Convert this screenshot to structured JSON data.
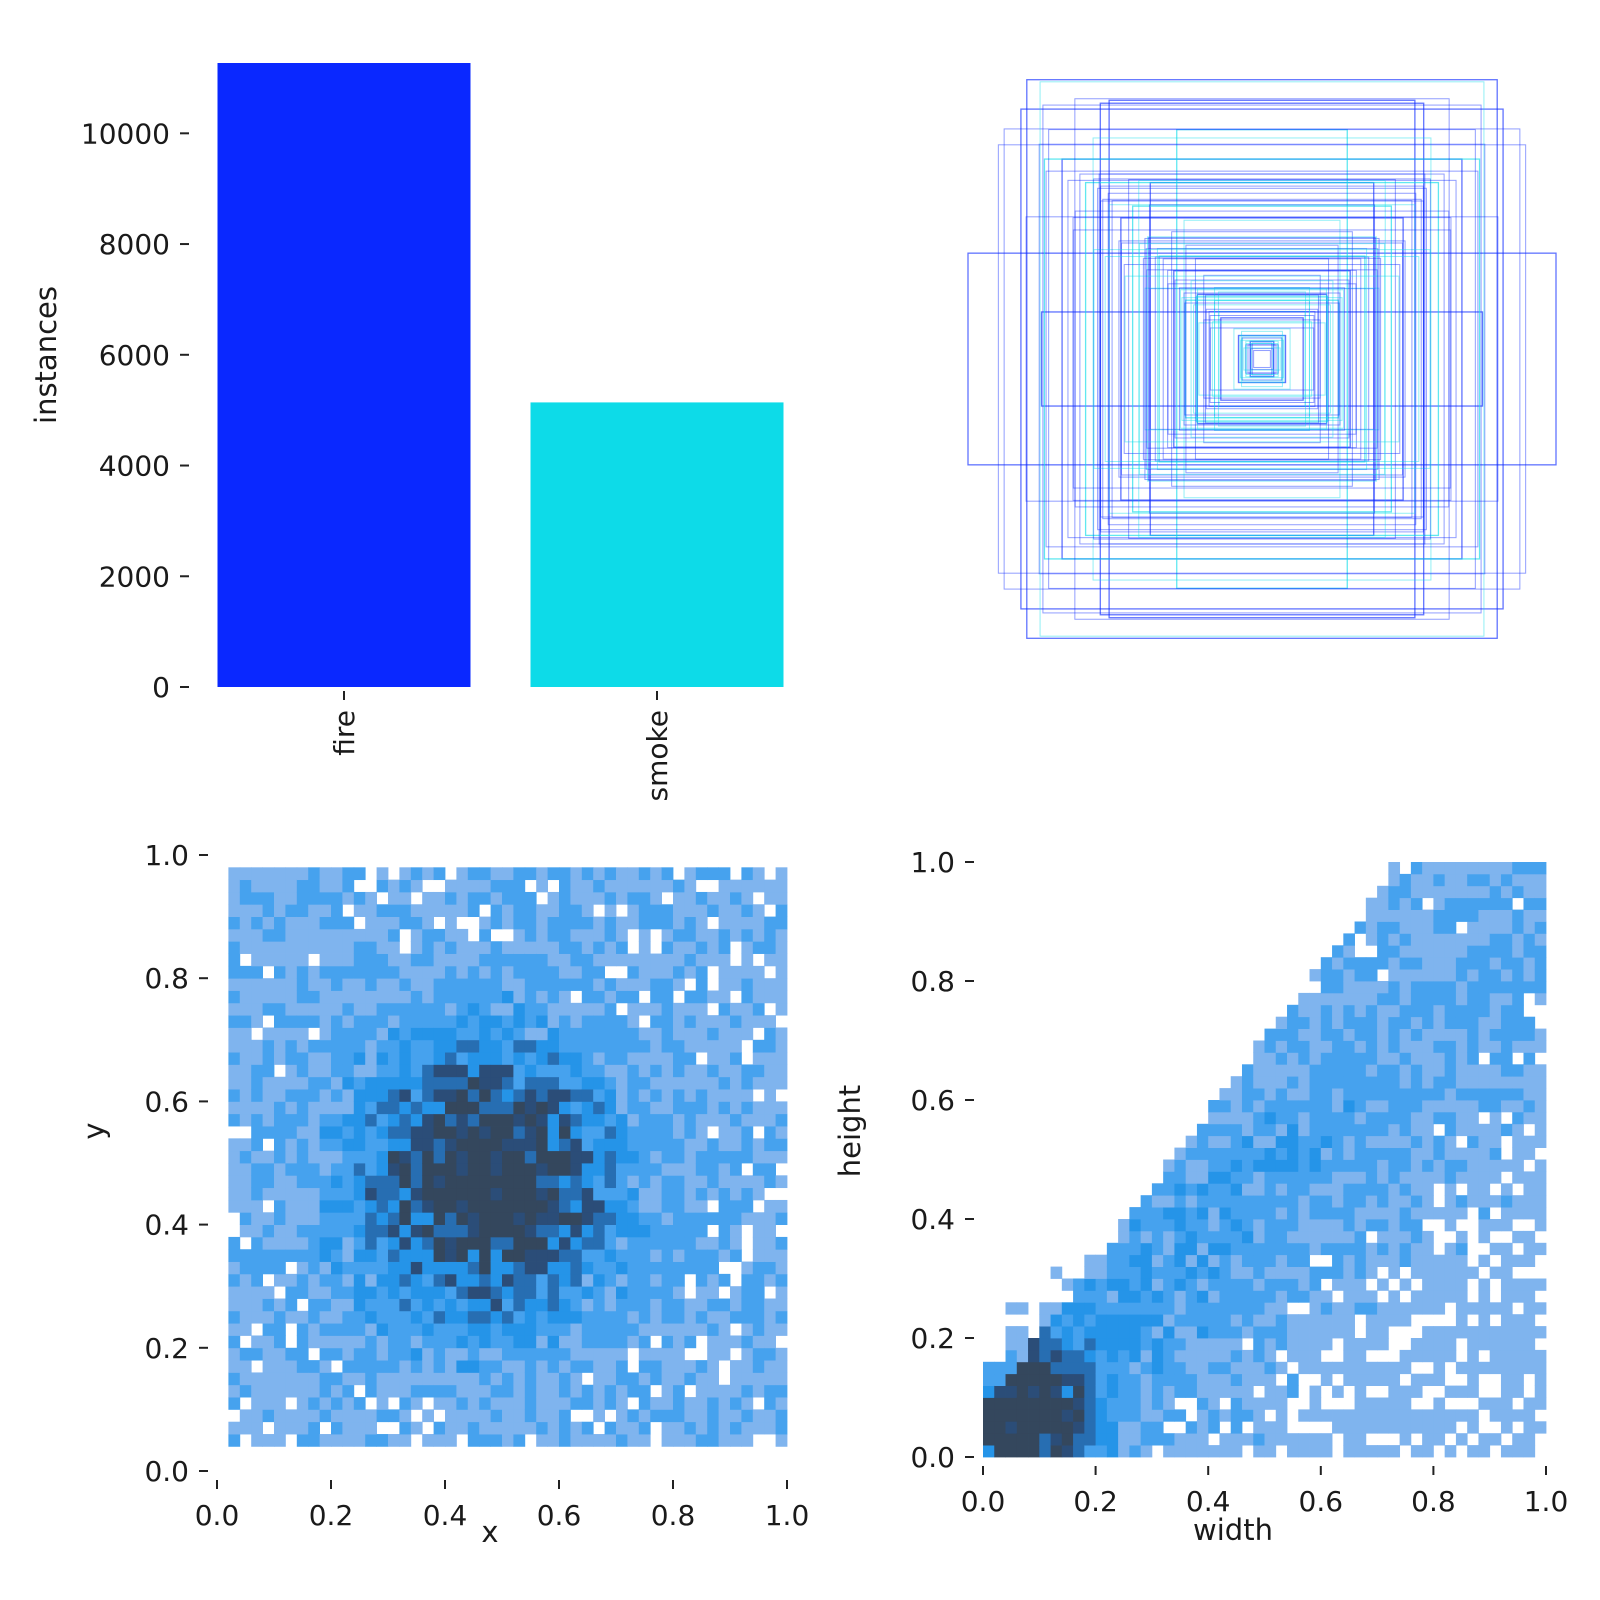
{
  "chart_data": [
    {
      "type": "bar",
      "categories": [
        "fire",
        "smoke"
      ],
      "values": [
        11270,
        5140
      ],
      "colors": [
        "#0a28ff",
        "#0ddbe8"
      ],
      "ylabel": "instances",
      "xlabel": "",
      "ylim": [
        0,
        11270
      ],
      "yticks": [
        0,
        2000,
        4000,
        6000,
        8000,
        10000
      ],
      "ytick_labels": [
        "0",
        "2000",
        "4000",
        "6000",
        "8000",
        "10000"
      ],
      "grid": false
    },
    {
      "type": "scatter",
      "subtype": "centered box overlay",
      "label_colors": [
        "#0a28ff",
        "#0ddbe8"
      ],
      "boxes": [
        {
          "class": "fire",
          "w": 0.8,
          "h": 0.95
        },
        {
          "class": "fire",
          "w": 0.82,
          "h": 0.85
        },
        {
          "class": "fire",
          "w": 1.0,
          "h": 0.36
        },
        {
          "class": "fire",
          "w": 0.55,
          "h": 0.87
        },
        {
          "class": "fire",
          "w": 0.52,
          "h": 0.88
        },
        {
          "class": "fire",
          "w": 0.68,
          "h": 0.68
        },
        {
          "class": "fire",
          "w": 0.38,
          "h": 0.6
        },
        {
          "class": "fire",
          "w": 0.48,
          "h": 0.48
        },
        {
          "class": "fire",
          "w": 0.75,
          "h": 0.16
        },
        {
          "class": "fire",
          "w": 0.3,
          "h": 0.3
        },
        {
          "class": "fire",
          "w": 0.22,
          "h": 0.22
        },
        {
          "class": "fire",
          "w": 0.14,
          "h": 0.14
        },
        {
          "class": "fire",
          "w": 0.08,
          "h": 0.08
        },
        {
          "class": "fire",
          "w": 0.04,
          "h": 0.06
        },
        {
          "class": "smoke",
          "w": 0.29,
          "h": 0.78
        },
        {
          "class": "smoke",
          "w": 0.74,
          "h": 0.68
        },
        {
          "class": "smoke",
          "w": 0.6,
          "h": 0.6
        },
        {
          "class": "smoke",
          "w": 0.44,
          "h": 0.52
        },
        {
          "class": "smoke",
          "w": 0.35,
          "h": 0.35
        },
        {
          "class": "smoke",
          "w": 0.26,
          "h": 0.2
        }
      ]
    },
    {
      "type": "heatmap",
      "xlabel": "x",
      "ylabel": "y",
      "xlim": [
        0,
        1
      ],
      "ylim": [
        0,
        1
      ],
      "xticks": [
        "0.0",
        "0.2",
        "0.4",
        "0.6",
        "0.8",
        "1.0"
      ],
      "yticks": [
        "0.0",
        "0.2",
        "0.4",
        "0.6",
        "0.8",
        "1.0"
      ],
      "bins": 50,
      "density_peak": [
        0.47,
        0.47
      ],
      "colormap": [
        "#a4c6ee",
        "#7fb4ee",
        "#46a2ee",
        "#2594e8",
        "#276eb2",
        "#2b4d78",
        "#34475d"
      ]
    },
    {
      "type": "heatmap",
      "xlabel": "width",
      "ylabel": "height",
      "xlim": [
        0,
        1
      ],
      "ylim": [
        0,
        1
      ],
      "xticks": [
        "0.0",
        "0.2",
        "0.4",
        "0.6",
        "0.8",
        "1.0"
      ],
      "yticks": [
        "0.0",
        "0.2",
        "0.4",
        "0.6",
        "0.8",
        "1.0"
      ],
      "bins": 50,
      "density_peak": [
        0.07,
        0.07
      ],
      "colormap": [
        "#a4c6ee",
        "#7fb4ee",
        "#46a2ee",
        "#2594e8",
        "#276eb2",
        "#2b4d78",
        "#34475d"
      ]
    }
  ]
}
